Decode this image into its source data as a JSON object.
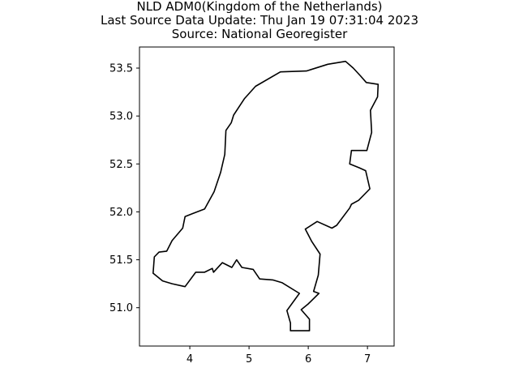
{
  "title": {
    "line1": "NLD ADM0(Kingdom of the Netherlands)",
    "line2": "Last Source Data Update: Thu Jan 19 07:31:04 2023",
    "line3": "Source: National Georegister"
  },
  "chart_data": {
    "type": "map",
    "title": "NLD ADM0(Kingdom of the Netherlands)",
    "xlim": [
      3.15,
      7.45
    ],
    "ylim": [
      50.6,
      53.72
    ],
    "xticks": [
      4,
      5,
      6,
      7
    ],
    "yticks": [
      51.0,
      51.5,
      52.0,
      52.5,
      53.0,
      53.5
    ],
    "xtick_labels": [
      "4",
      "5",
      "6",
      "7"
    ],
    "ytick_labels": [
      "51.0",
      "51.5",
      "52.0",
      "52.5",
      "53.0",
      "53.5"
    ],
    "grid": false,
    "outline_color": "#000000",
    "outline": [
      [
        6.63,
        53.57
      ],
      [
        6.76,
        53.5
      ],
      [
        6.88,
        53.42
      ],
      [
        6.98,
        53.35
      ],
      [
        7.18,
        53.33
      ],
      [
        7.17,
        53.2
      ],
      [
        7.05,
        53.06
      ],
      [
        7.07,
        52.83
      ],
      [
        6.99,
        52.64
      ],
      [
        6.73,
        52.64
      ],
      [
        6.7,
        52.5
      ],
      [
        6.86,
        52.46
      ],
      [
        6.97,
        52.43
      ],
      [
        7.04,
        52.24
      ],
      [
        6.85,
        52.12
      ],
      [
        6.73,
        52.08
      ],
      [
        6.7,
        52.04
      ],
      [
        6.48,
        51.86
      ],
      [
        6.4,
        51.83
      ],
      [
        6.15,
        51.9
      ],
      [
        5.95,
        51.82
      ],
      [
        6.06,
        51.69
      ],
      [
        6.2,
        51.56
      ],
      [
        6.17,
        51.34
      ],
      [
        6.09,
        51.17
      ],
      [
        6.18,
        51.15
      ],
      [
        6.0,
        51.04
      ],
      [
        5.88,
        50.98
      ],
      [
        6.02,
        50.88
      ],
      [
        6.02,
        50.76
      ],
      [
        5.88,
        50.76
      ],
      [
        5.7,
        50.76
      ],
      [
        5.7,
        50.84
      ],
      [
        5.64,
        50.97
      ],
      [
        5.85,
        51.15
      ],
      [
        5.56,
        51.26
      ],
      [
        5.4,
        51.29
      ],
      [
        5.18,
        51.3
      ],
      [
        5.07,
        51.4
      ],
      [
        4.88,
        51.42
      ],
      [
        4.79,
        51.5
      ],
      [
        4.71,
        51.42
      ],
      [
        4.55,
        51.47
      ],
      [
        4.4,
        51.37
      ],
      [
        4.38,
        51.41
      ],
      [
        4.25,
        51.37
      ],
      [
        4.1,
        51.37
      ],
      [
        3.92,
        51.22
      ],
      [
        3.7,
        51.25
      ],
      [
        3.54,
        51.28
      ],
      [
        3.38,
        51.36
      ],
      [
        3.4,
        51.53
      ],
      [
        3.48,
        51.58
      ],
      [
        3.61,
        51.59
      ],
      [
        3.7,
        51.7
      ],
      [
        3.88,
        51.83
      ],
      [
        3.92,
        51.95
      ],
      [
        4.04,
        51.98
      ],
      [
        4.25,
        52.03
      ],
      [
        4.41,
        52.21
      ],
      [
        4.52,
        52.41
      ],
      [
        4.59,
        52.6
      ],
      [
        4.61,
        52.85
      ],
      [
        4.7,
        52.93
      ],
      [
        4.74,
        53.01
      ],
      [
        4.92,
        53.18
      ],
      [
        5.11,
        53.31
      ],
      [
        5.53,
        53.46
      ],
      [
        5.97,
        53.47
      ],
      [
        6.33,
        53.54
      ],
      [
        6.63,
        53.57
      ]
    ]
  }
}
